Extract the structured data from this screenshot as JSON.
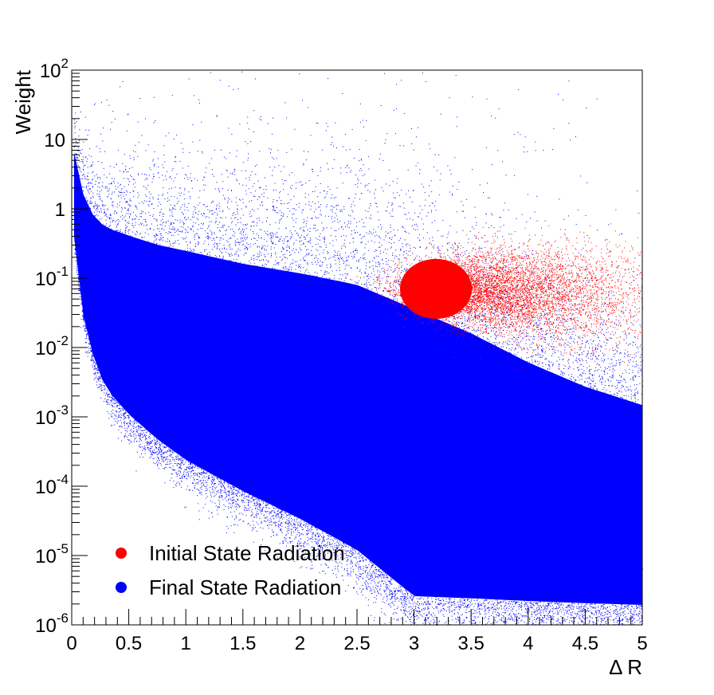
{
  "chart_data": {
    "type": "scatter",
    "title": "",
    "xlabel": "Δ R",
    "ylabel": "Weight",
    "xlim": [
      0,
      5
    ],
    "ylim": [
      1e-06,
      100
    ],
    "yscale": "log",
    "grid": false,
    "legend_position": "bottom-left",
    "x_ticks": [
      0,
      0.5,
      1,
      1.5,
      2,
      2.5,
      3,
      3.5,
      4,
      4.5,
      5
    ],
    "x_tick_labels": [
      "0",
      "0.5",
      "1",
      "1.5",
      "2",
      "2.5",
      "3",
      "3.5",
      "4",
      "4.5",
      "5"
    ],
    "y_ticks": [
      {
        "value": 1e-06,
        "base": "10",
        "exp": "-6"
      },
      {
        "value": 1e-05,
        "base": "10",
        "exp": "-5"
      },
      {
        "value": 0.0001,
        "base": "10",
        "exp": "-4"
      },
      {
        "value": 0.001,
        "base": "10",
        "exp": "-3"
      },
      {
        "value": 0.01,
        "base": "10",
        "exp": "-2"
      },
      {
        "value": 0.1,
        "base": "10",
        "exp": "-1"
      },
      {
        "value": 1,
        "base": "1",
        "exp": ""
      },
      {
        "value": 10,
        "base": "10",
        "exp": ""
      },
      {
        "value": 100,
        "base": "10",
        "exp": "2"
      }
    ],
    "series": [
      {
        "name": "Final State Radiation",
        "color": "#0000ff",
        "band": {
          "x": [
            0.02,
            0.1,
            0.2,
            0.3,
            0.5,
            0.75,
            1.0,
            1.5,
            2.0,
            2.5,
            3.0,
            3.5,
            4.0,
            4.5,
            5.0
          ],
          "upper": [
            10,
            3,
            1.5,
            1.2,
            1.0,
            0.8,
            0.7,
            0.5,
            0.4,
            0.3,
            0.15,
            0.06,
            0.02,
            0.008,
            0.004
          ],
          "lower": [
            0.3,
            0.02,
            0.004,
            0.0015,
            0.0006,
            0.00025,
            0.00012,
            4e-05,
            1.5e-05,
            5e-06,
            1e-06,
            1e-06,
            1e-06,
            1e-06,
            1e-06
          ]
        }
      },
      {
        "name": "Initial State Radiation",
        "color": "#ff0000",
        "blob": {
          "x_center": 3.15,
          "x_spread": 0.35,
          "x_tail_max": 5.0,
          "y_center": 0.07,
          "y_min": 0.01,
          "y_max": 0.35
        }
      }
    ]
  },
  "legend": {
    "items": [
      {
        "label": "Initial State Radiation",
        "color": "#ff0000"
      },
      {
        "label": "Final State Radiation",
        "color": "#0000ff"
      }
    ]
  }
}
